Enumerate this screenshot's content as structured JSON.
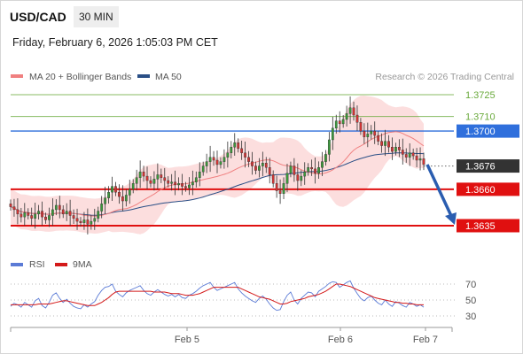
{
  "header": {
    "symbol": "USD/CAD",
    "interval": "30 MIN",
    "datetime": "Friday, February 6, 2026 1:05:03 PM CET"
  },
  "legend": {
    "ma20_label": "MA 20 + Bollinger Bands",
    "ma50_label": "MA 50",
    "copyright": "Research © 2026 Trading Central",
    "colors": {
      "ma20": "#f08080",
      "ma50": "#2a4f86",
      "band": "#fbd3d3"
    }
  },
  "rsi_legend": {
    "rsi_label": "RSI",
    "ma_label": "9MA",
    "colors": {
      "rsi": "#5b7bd6",
      "ma": "#d41a1a"
    }
  },
  "chart_data": [
    {
      "type": "candlestick",
      "title": "USD/CAD",
      "ylim": [
        1.363,
        1.3735
      ],
      "x_ticks": [
        "Feb 5",
        "Feb 6",
        "Feb 7"
      ],
      "levels": [
        {
          "label": "1.3725",
          "value": 1.3725,
          "color": "#6aaa3c",
          "kind": "resistance"
        },
        {
          "label": "1.3710",
          "value": 1.371,
          "color": "#6aaa3c",
          "kind": "resistance"
        },
        {
          "label": "1.3700",
          "value": 1.37,
          "color": "#2f6fdc",
          "kind": "pivot"
        },
        {
          "label": "1.3676",
          "value": 1.3676,
          "color": "#333333",
          "kind": "last_price"
        },
        {
          "label": "1.3660",
          "value": 1.366,
          "color": "#e01010",
          "kind": "support"
        },
        {
          "label": "1.3635",
          "value": 1.3635,
          "color": "#e01010",
          "kind": "support"
        }
      ],
      "forecast_arrow": {
        "from": 1.3677,
        "to": 1.3635,
        "color": "#2a5db0"
      },
      "close_series": [
        1.3648,
        1.3646,
        1.3643,
        1.3641,
        1.3644,
        1.3642,
        1.364,
        1.3643,
        1.3645,
        1.3641,
        1.3639,
        1.3642,
        1.3646,
        1.3649,
        1.3646,
        1.3643,
        1.3645,
        1.3642,
        1.364,
        1.3638,
        1.3637,
        1.3639,
        1.3636,
        1.3638,
        1.364,
        1.3645,
        1.365,
        1.3654,
        1.3658,
        1.3662,
        1.3658,
        1.3655,
        1.3652,
        1.3656,
        1.366,
        1.3664,
        1.3668,
        1.3672,
        1.3669,
        1.3666,
        1.3664,
        1.3667,
        1.367,
        1.3668,
        1.3666,
        1.3664,
        1.3665,
        1.3663,
        1.3664,
        1.3662,
        1.3661,
        1.3663,
        1.3665,
        1.3668,
        1.3672,
        1.3676,
        1.3679,
        1.3682,
        1.368,
        1.3677,
        1.3679,
        1.3682,
        1.3685,
        1.3689,
        1.3692,
        1.3688,
        1.3685,
        1.3682,
        1.3679,
        1.3676,
        1.3673,
        1.3676,
        1.3678,
        1.3675,
        1.367,
        1.3664,
        1.3659,
        1.3657,
        1.3664,
        1.3671,
        1.3676,
        1.367,
        1.3666,
        1.3669,
        1.3672,
        1.3675,
        1.3674,
        1.3671,
        1.3675,
        1.3679,
        1.3684,
        1.3694,
        1.3702,
        1.3707,
        1.3705,
        1.3708,
        1.3712,
        1.3716,
        1.3711,
        1.3706,
        1.37,
        1.3696,
        1.3698,
        1.37,
        1.3697,
        1.3693,
        1.369,
        1.3693,
        1.3689,
        1.3686,
        1.3689,
        1.3687,
        1.3684,
        1.3682,
        1.3685,
        1.3683,
        1.368,
        1.3681,
        1.3677
      ]
    },
    {
      "type": "line",
      "title": "RSI",
      "ylim": [
        25,
        75
      ],
      "y_ticks": [
        70,
        50,
        30
      ],
      "series": [
        {
          "name": "RSI",
          "values": [
            42,
            46,
            44,
            41,
            47,
            44,
            41,
            49,
            52,
            43,
            40,
            47,
            56,
            59,
            52,
            47,
            51,
            46,
            42,
            40,
            39,
            44,
            41,
            45,
            48,
            56,
            62,
            66,
            67,
            70,
            61,
            57,
            54,
            59,
            62,
            64,
            66,
            68,
            62,
            58,
            56,
            60,
            63,
            60,
            57,
            55,
            57,
            54,
            57,
            53,
            52,
            56,
            58,
            61,
            65,
            68,
            70,
            72,
            66,
            62,
            64,
            66,
            68,
            70,
            72,
            64,
            59,
            55,
            52,
            49,
            47,
            52,
            55,
            51,
            45,
            40,
            37,
            38,
            48,
            56,
            60,
            50,
            45,
            52,
            56,
            60,
            59,
            54,
            61,
            64,
            67,
            71,
            73,
            72,
            66,
            69,
            72,
            74,
            65,
            58,
            52,
            49,
            53,
            55,
            50,
            46,
            44,
            50,
            45,
            42,
            48,
            46,
            43,
            41,
            47,
            45,
            42,
            44,
            41
          ]
        },
        {
          "name": "9MA",
          "values": [
            44,
            44,
            44,
            44,
            44,
            44,
            44,
            44,
            45,
            45,
            45,
            45,
            46,
            47,
            48,
            49,
            49,
            48,
            47,
            46,
            45,
            44,
            43,
            43,
            43,
            45,
            47,
            50,
            53,
            57,
            60,
            61,
            61,
            61,
            61,
            61,
            61,
            61,
            61,
            61,
            61,
            60,
            60,
            60,
            60,
            59,
            58,
            58,
            58,
            57,
            56,
            56,
            56,
            57,
            58,
            60,
            62,
            64,
            66,
            66,
            66,
            66,
            66,
            66,
            66,
            66,
            64,
            62,
            60,
            58,
            56,
            54,
            53,
            52,
            51,
            49,
            47,
            45,
            45,
            46,
            48,
            49,
            50,
            51,
            52,
            54,
            55,
            56,
            57,
            59,
            61,
            64,
            67,
            70,
            70,
            69,
            68,
            67,
            65,
            63,
            61,
            59,
            57,
            55,
            53,
            52,
            51,
            50,
            49,
            48,
            47,
            47,
            46,
            46,
            45,
            45,
            44,
            44,
            44
          ]
        }
      ]
    }
  ]
}
